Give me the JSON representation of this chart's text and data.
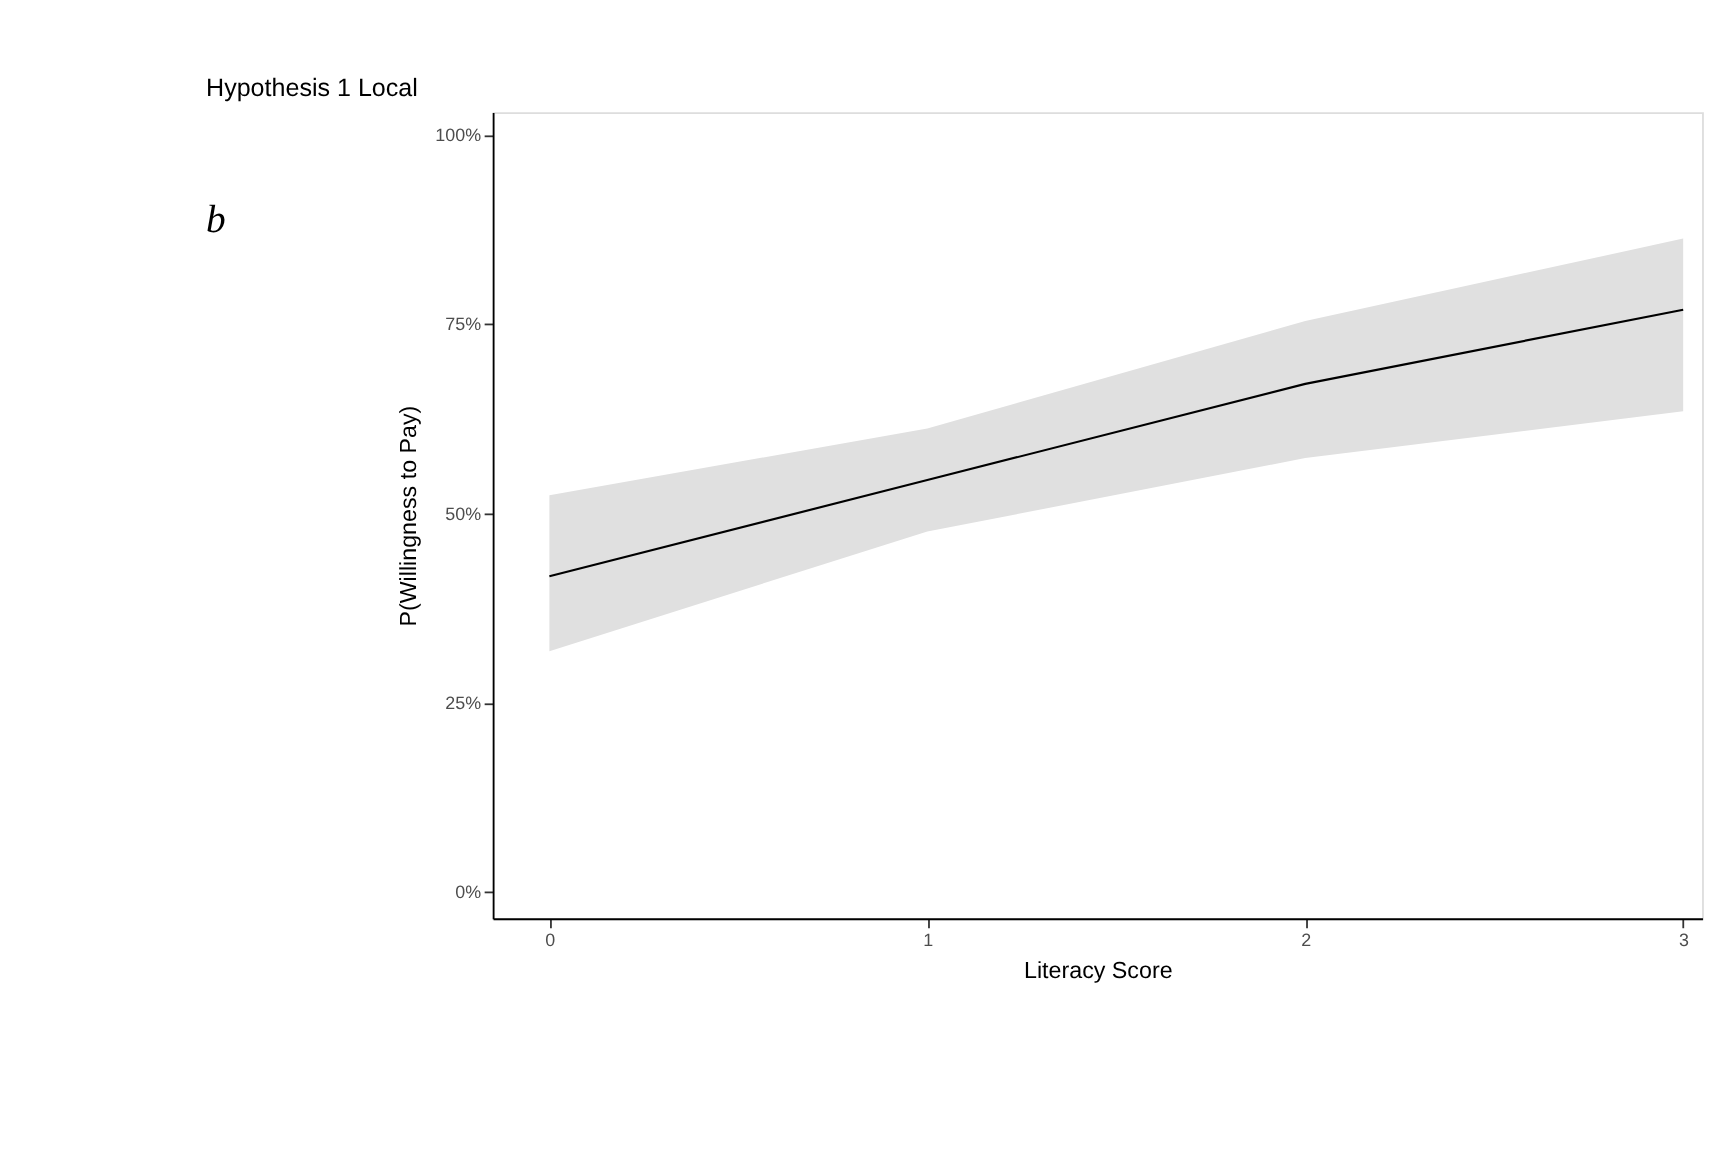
{
  "chart_data": {
    "type": "line",
    "title": "Hypothesis 1 Local",
    "xlabel": "Literacy Score",
    "ylabel": "P(Willingness to Pay)",
    "annotations": [
      "b"
    ],
    "x": [
      0,
      1,
      2,
      3
    ],
    "series": [
      {
        "color": "#000000",
        "values": [
          41.7,
          54.4,
          67.1,
          76.9
        ],
        "lower": [
          31.8,
          47.6,
          57.3,
          63.5
        ],
        "upper": [
          52.4,
          61.2,
          75.4,
          86.3
        ]
      }
    ],
    "xlim": [
      -0.15,
      3.05
    ],
    "xticks": [
      0,
      1,
      2,
      3
    ],
    "ylim": [
      -3.5,
      103
    ],
    "yticks": [
      {
        "value": 0,
        "label": "0%"
      },
      {
        "value": 25,
        "label": "25%"
      },
      {
        "value": 50,
        "label": "50%"
      },
      {
        "value": 75,
        "label": "75%"
      },
      {
        "value": 100,
        "label": "100%"
      }
    ],
    "grid": false,
    "marker": "none",
    "line_style": "solid"
  }
}
